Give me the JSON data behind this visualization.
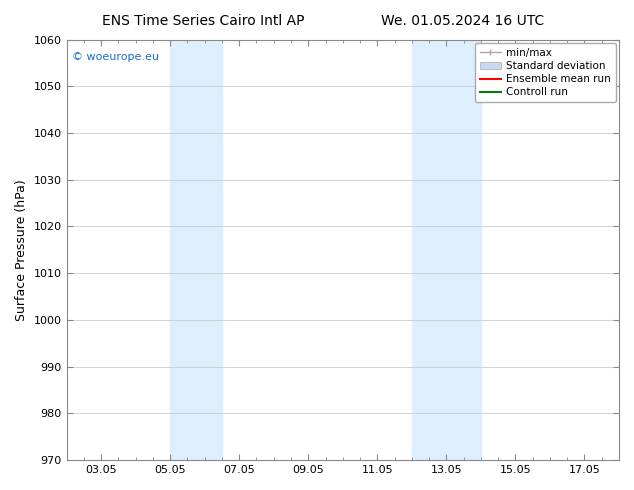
{
  "title_left": "ENS Time Series Cairo Intl AP",
  "title_right": "We. 01.05.2024 16 UTC",
  "ylabel": "Surface Pressure (hPa)",
  "ylim": [
    970,
    1060
  ],
  "yticks": [
    970,
    980,
    990,
    1000,
    1010,
    1020,
    1030,
    1040,
    1050,
    1060
  ],
  "xtick_labels": [
    "03.05",
    "05.05",
    "07.05",
    "09.05",
    "11.05",
    "13.05",
    "15.05",
    "17.05"
  ],
  "xtick_positions": [
    2,
    4,
    6,
    8,
    10,
    12,
    14,
    16
  ],
  "xlim": [
    1,
    17
  ],
  "shade_bands": [
    {
      "x_start": 4.0,
      "x_end": 5.5,
      "color": "#ddeeff"
    },
    {
      "x_start": 11.0,
      "x_end": 13.0,
      "color": "#ddeeff"
    }
  ],
  "watermark_text": "© woeurope.eu",
  "watermark_color": "#1a6dcc",
  "legend_entries": [
    {
      "label": "min/max",
      "color": "#aaaaaa",
      "lw": 1.0,
      "style": "solid"
    },
    {
      "label": "Standard deviation",
      "color": "#c8d8f0",
      "lw": 6,
      "style": "solid"
    },
    {
      "label": "Ensemble mean run",
      "color": "#ff0000",
      "lw": 1.5,
      "style": "solid"
    },
    {
      "label": "Controll run",
      "color": "#008000",
      "lw": 1.5,
      "style": "solid"
    }
  ],
  "background_color": "#ffffff",
  "grid_color": "#cccccc",
  "tick_label_fontsize": 8,
  "axis_label_fontsize": 9,
  "title_fontsize": 10
}
